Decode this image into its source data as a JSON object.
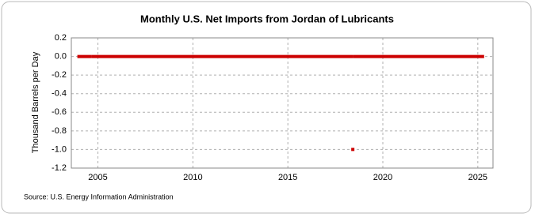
{
  "chart_data": {
    "type": "line",
    "title": "Monthly U.S. Net Imports from Jordan of Lubricants",
    "y_label": "Thousand Barrels per Day",
    "source": "Source: U.S. Energy Information Administration",
    "x": [
      2004.0,
      2004.58,
      2004.62,
      2004.75,
      2018.33,
      2018.38,
      2018.42,
      2018.46,
      2018.5,
      2025.25
    ],
    "values": [
      0,
      0,
      null,
      0,
      0,
      null,
      -1,
      null,
      0,
      0
    ],
    "color": "#cc0000",
    "xlim": [
      2003.6,
      2025.8
    ],
    "xticks": [
      2005,
      2010,
      2015,
      2020,
      2025
    ],
    "ylim": [
      -1.2,
      0.2
    ],
    "yticks": [
      0.2,
      {
        "value": 0,
        "label": "0.0"
      },
      -0.2,
      -0.4,
      -0.6,
      -0.8,
      {
        "value": -1,
        "label": "-1.0"
      },
      -1.2
    ],
    "grid": true
  }
}
